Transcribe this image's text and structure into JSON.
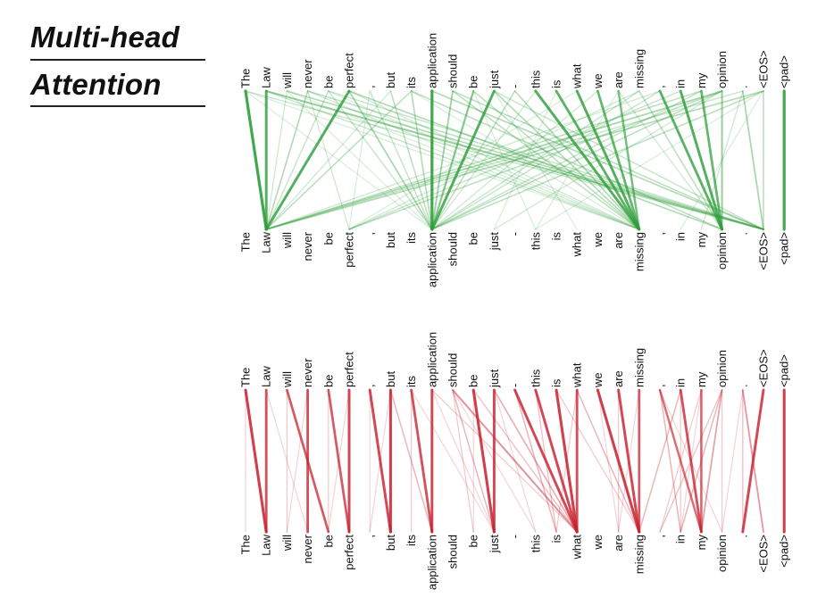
{
  "title": {
    "line1": "Multi-head",
    "line2": "Attention"
  },
  "tokens": [
    "The",
    "Law",
    "will",
    "never",
    "be",
    "perfect",
    ",",
    "but",
    "its",
    "application",
    "should",
    "be",
    "just",
    "-",
    "this",
    "is",
    "what",
    "we",
    "are",
    "missing",
    ",",
    "in",
    "my",
    "opinion",
    ".",
    "<EOS>",
    "<pad>"
  ],
  "colors": {
    "green": "#2e9e3a",
    "red": "#c8202e"
  },
  "chart_data": [
    {
      "type": "diagram",
      "name": "green attention head",
      "links": [
        [
          0,
          1,
          1.0
        ],
        [
          1,
          1,
          0.9
        ],
        [
          2,
          1,
          0.2
        ],
        [
          3,
          1,
          0.35
        ],
        [
          4,
          1,
          0.25
        ],
        [
          5,
          1,
          0.9
        ],
        [
          7,
          1,
          0.2
        ],
        [
          8,
          1,
          0.3
        ],
        [
          9,
          9,
          1.0
        ],
        [
          10,
          9,
          0.45
        ],
        [
          11,
          9,
          0.6
        ],
        [
          12,
          9,
          0.9
        ],
        [
          13,
          9,
          0.3
        ],
        [
          8,
          9,
          0.35
        ],
        [
          7,
          9,
          0.3
        ],
        [
          5,
          9,
          0.4
        ],
        [
          6,
          9,
          0.25
        ],
        [
          4,
          9,
          0.25
        ],
        [
          14,
          19,
          0.9
        ],
        [
          15,
          19,
          0.85
        ],
        [
          16,
          19,
          0.9
        ],
        [
          17,
          19,
          0.8
        ],
        [
          18,
          19,
          0.7
        ],
        [
          13,
          19,
          0.35
        ],
        [
          12,
          19,
          0.35
        ],
        [
          11,
          19,
          0.3
        ],
        [
          10,
          19,
          0.3
        ],
        [
          20,
          23,
          0.85
        ],
        [
          21,
          23,
          0.9
        ],
        [
          22,
          23,
          0.8
        ],
        [
          23,
          23,
          0.5
        ],
        [
          19,
          23,
          0.3
        ],
        [
          18,
          23,
          0.2
        ],
        [
          24,
          25,
          0.4
        ],
        [
          25,
          25,
          0.3
        ],
        [
          26,
          26,
          1.0
        ],
        [
          1,
          25,
          0.5
        ],
        [
          2,
          25,
          0.35
        ],
        [
          3,
          25,
          0.3
        ],
        [
          0,
          25,
          0.25
        ],
        [
          4,
          25,
          0.25
        ],
        [
          9,
          25,
          0.35
        ],
        [
          10,
          25,
          0.3
        ],
        [
          12,
          25,
          0.25
        ],
        [
          5,
          23,
          0.35
        ],
        [
          8,
          23,
          0.3
        ],
        [
          23,
          1,
          0.4
        ],
        [
          22,
          1,
          0.3
        ],
        [
          23,
          5,
          0.3
        ],
        [
          25,
          1,
          0.35
        ],
        [
          24,
          1,
          0.25
        ],
        [
          21,
          5,
          0.25
        ],
        [
          23,
          9,
          0.3
        ],
        [
          20,
          9,
          0.25
        ],
        [
          22,
          9,
          0.25
        ],
        [
          25,
          9,
          0.3
        ],
        [
          19,
          5,
          0.2
        ],
        [
          25,
          14,
          0.15
        ],
        [
          17,
          9,
          0.2
        ],
        [
          14,
          9,
          0.2
        ],
        [
          16,
          5,
          0.15
        ],
        [
          20,
          1,
          0.2
        ],
        [
          23,
          12,
          0.2
        ],
        [
          19,
          9,
          0.25
        ],
        [
          0,
          9,
          0.15
        ],
        [
          2,
          9,
          0.15
        ],
        [
          3,
          5,
          0.2
        ],
        [
          6,
          5,
          0.15
        ],
        [
          11,
          14,
          0.15
        ],
        [
          12,
          16,
          0.15
        ],
        [
          15,
          12,
          0.15
        ],
        [
          18,
          14,
          0.15
        ],
        [
          24,
          22,
          0.2
        ],
        [
          25,
          21,
          0.15
        ],
        [
          1,
          19,
          0.25
        ],
        [
          3,
          19,
          0.2
        ],
        [
          5,
          19,
          0.2
        ],
        [
          2,
          19,
          0.15
        ],
        [
          0,
          19,
          0.15
        ],
        [
          4,
          19,
          0.15
        ],
        [
          8,
          19,
          0.15
        ]
      ]
    },
    {
      "type": "diagram",
      "name": "red attention head",
      "links": [
        [
          0,
          1,
          0.95
        ],
        [
          1,
          1,
          0.85
        ],
        [
          2,
          4,
          0.8
        ],
        [
          3,
          3,
          0.85
        ],
        [
          4,
          5,
          0.8
        ],
        [
          5,
          5,
          0.9
        ],
        [
          6,
          7,
          0.9
        ],
        [
          7,
          7,
          0.95
        ],
        [
          8,
          9,
          0.85
        ],
        [
          7,
          9,
          0.3
        ],
        [
          9,
          9,
          0.9
        ],
        [
          8,
          8,
          0.2
        ],
        [
          10,
          16,
          0.5
        ],
        [
          11,
          12,
          0.95
        ],
        [
          12,
          12,
          0.9
        ],
        [
          10,
          12,
          0.3
        ],
        [
          13,
          16,
          0.9
        ],
        [
          14,
          16,
          0.9
        ],
        [
          15,
          16,
          0.95
        ],
        [
          16,
          16,
          0.85
        ],
        [
          13,
          15,
          0.3
        ],
        [
          14,
          15,
          0.25
        ],
        [
          12,
          16,
          0.35
        ],
        [
          11,
          16,
          0.25
        ],
        [
          9,
          16,
          0.2
        ],
        [
          17,
          19,
          0.95
        ],
        [
          18,
          19,
          0.9
        ],
        [
          19,
          19,
          0.8
        ],
        [
          16,
          19,
          0.3
        ],
        [
          15,
          19,
          0.2
        ],
        [
          20,
          22,
          0.7
        ],
        [
          21,
          22,
          0.85
        ],
        [
          22,
          22,
          0.75
        ],
        [
          23,
          22,
          0.4
        ],
        [
          23,
          21,
          0.3
        ],
        [
          23,
          20,
          0.25
        ],
        [
          22,
          20,
          0.2
        ],
        [
          21,
          19,
          0.3
        ],
        [
          20,
          21,
          0.3
        ],
        [
          24,
          25,
          0.45
        ],
        [
          25,
          24,
          0.9
        ],
        [
          24,
          24,
          0.25
        ],
        [
          26,
          26,
          0.95
        ],
        [
          2,
          2,
          0.2
        ],
        [
          3,
          2,
          0.15
        ],
        [
          1,
          3,
          0.15
        ],
        [
          0,
          0,
          0.15
        ],
        [
          4,
          4,
          0.2
        ],
        [
          5,
          4,
          0.15
        ],
        [
          10,
          11,
          0.2
        ],
        [
          11,
          11,
          0.15
        ],
        [
          12,
          14,
          0.15
        ],
        [
          16,
          15,
          0.2
        ],
        [
          17,
          18,
          0.15
        ],
        [
          18,
          18,
          0.2
        ],
        [
          19,
          18,
          0.15
        ],
        [
          20,
          23,
          0.15
        ],
        [
          21,
          21,
          0.2
        ],
        [
          22,
          21,
          0.15
        ],
        [
          23,
          23,
          0.2
        ],
        [
          24,
          23,
          0.15
        ],
        [
          10,
          14,
          0.15
        ],
        [
          9,
          12,
          0.15
        ],
        [
          8,
          12,
          0.15
        ],
        [
          6,
          6,
          0.15
        ],
        [
          7,
          6,
          0.15
        ]
      ]
    }
  ]
}
